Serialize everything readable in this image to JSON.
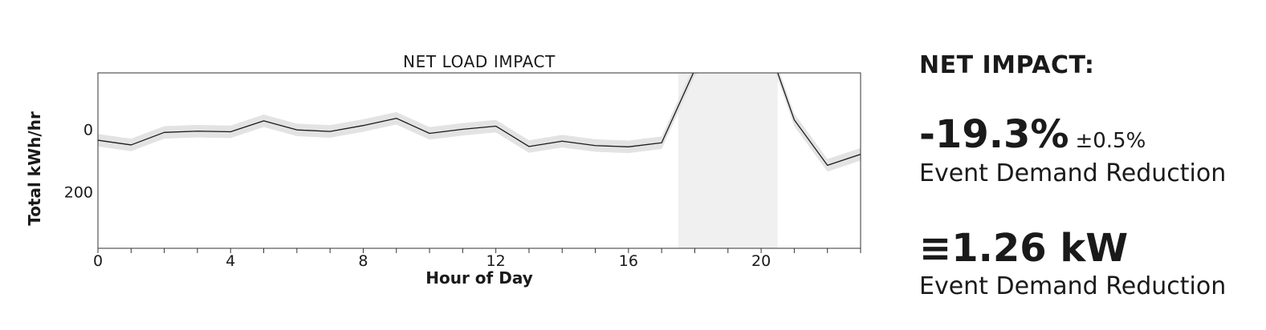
{
  "chart_data": {
    "type": "line",
    "title": "NET LOAD IMPACT",
    "xlabel": "Hour of Day",
    "ylabel": "Total kWh/hr",
    "xlim": [
      0,
      23
    ],
    "ylim": [
      380,
      -180
    ],
    "xticks": [
      0,
      4,
      8,
      12,
      16,
      20
    ],
    "yticks": [
      0,
      200
    ],
    "x": [
      0,
      1,
      2,
      3,
      4,
      5,
      6,
      7,
      8,
      9,
      10,
      11,
      12,
      13,
      14,
      15,
      16,
      17,
      18,
      19,
      20,
      21,
      22,
      23
    ],
    "series": [
      {
        "values": [
          35,
          50,
          10,
          6,
          8,
          -27,
          2,
          7,
          -12,
          -35,
          13,
          0,
          -10,
          55,
          38,
          52,
          56,
          43,
          -190,
          -295,
          -330,
          -30,
          115,
          80
        ],
        "band": 20,
        "color": "#1a1a1a"
      }
    ],
    "shaded_regions": [
      {
        "x_start": 17.5,
        "x_end": 20.5,
        "color": "#f0f0f0"
      }
    ],
    "band_color": "#e3e3e3",
    "grid": false
  },
  "panel": {
    "title": "NET IMPACT:",
    "percent_value": "-19.3%",
    "percent_error": "±0.5%",
    "percent_label": "Event Demand Reduction",
    "kw_value": "≡1.26 kW",
    "kw_label": "Event Demand Reduction"
  }
}
